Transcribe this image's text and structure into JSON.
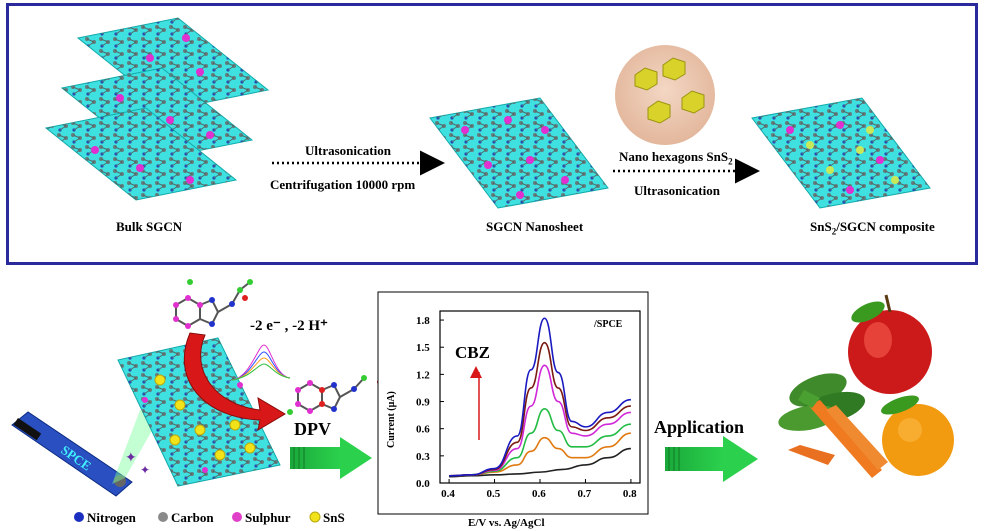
{
  "top": {
    "bulk_label": "Bulk SGCN",
    "arrow1_top": "Ultrasonication",
    "arrow1_bottom": "Centrifugation 10000 rpm",
    "nanosheet_label": "SGCN Nanosheet",
    "arrow2_top_prefix": "Nano hexagons SnS",
    "arrow2_top_sub": "2",
    "arrow2_bottom": "Ultrasonication",
    "composite_prefix": "SnS",
    "composite_sub": "2",
    "composite_suffix": "/SGCN composite"
  },
  "bottom": {
    "reaction_label": "-2 e⁻ , -2 H⁺",
    "dpv_label": "DPV",
    "electrode_label": "SPCE",
    "application_label": "Application",
    "legend": [
      {
        "label": "Nitrogen",
        "color": "#1a2fbf"
      },
      {
        "label": "Carbon",
        "color": "#8a8a8a"
      },
      {
        "label": "Sulphur",
        "color": "#e040c8"
      },
      {
        "label": "SnS",
        "color": "#f2e21a"
      }
    ]
  },
  "chart_data": {
    "type": "line",
    "annotation": "/SPCE",
    "analyte_label": "CBZ",
    "xlabel": "E/V vs. Ag/AgCl",
    "ylabel": "Current (μA)",
    "xlim": [
      0.38,
      0.82
    ],
    "ylim": [
      0.0,
      1.9
    ],
    "xticks": [
      "0.4",
      "0.5",
      "0.6",
      "0.7",
      "0.8"
    ],
    "yticks": [
      "0.0",
      "0.3",
      "0.6",
      "0.9",
      "1.2",
      "1.5",
      "1.8"
    ],
    "series": [
      {
        "color": "#222222",
        "x": [
          0.4,
          0.45,
          0.5,
          0.55,
          0.6,
          0.65,
          0.7,
          0.75,
          0.8
        ],
        "y": [
          0.07,
          0.08,
          0.09,
          0.1,
          0.12,
          0.15,
          0.2,
          0.28,
          0.38
        ]
      },
      {
        "color": "#e07a10",
        "x": [
          0.4,
          0.45,
          0.5,
          0.55,
          0.58,
          0.61,
          0.64,
          0.67,
          0.7,
          0.75,
          0.8
        ],
        "y": [
          0.08,
          0.09,
          0.12,
          0.2,
          0.35,
          0.5,
          0.38,
          0.28,
          0.28,
          0.4,
          0.55
        ]
      },
      {
        "color": "#22bb44",
        "x": [
          0.4,
          0.45,
          0.5,
          0.55,
          0.58,
          0.61,
          0.64,
          0.67,
          0.7,
          0.75,
          0.8
        ],
        "y": [
          0.08,
          0.09,
          0.13,
          0.28,
          0.55,
          0.82,
          0.58,
          0.4,
          0.4,
          0.52,
          0.65
        ]
      },
      {
        "color": "#d028d8",
        "x": [
          0.4,
          0.45,
          0.5,
          0.55,
          0.58,
          0.61,
          0.64,
          0.67,
          0.7,
          0.75,
          0.8
        ],
        "y": [
          0.08,
          0.09,
          0.14,
          0.38,
          0.85,
          1.3,
          0.9,
          0.55,
          0.52,
          0.65,
          0.78
        ]
      },
      {
        "color": "#7a1a10",
        "x": [
          0.4,
          0.45,
          0.5,
          0.55,
          0.58,
          0.61,
          0.64,
          0.67,
          0.7,
          0.75,
          0.8
        ],
        "y": [
          0.08,
          0.09,
          0.15,
          0.45,
          1.05,
          1.55,
          1.05,
          0.62,
          0.58,
          0.72,
          0.85
        ]
      },
      {
        "color": "#1a1ac0",
        "x": [
          0.4,
          0.45,
          0.5,
          0.55,
          0.58,
          0.61,
          0.64,
          0.67,
          0.7,
          0.75,
          0.8
        ],
        "y": [
          0.08,
          0.09,
          0.16,
          0.52,
          1.25,
          1.82,
          1.22,
          0.68,
          0.62,
          0.78,
          0.92
        ]
      }
    ]
  }
}
